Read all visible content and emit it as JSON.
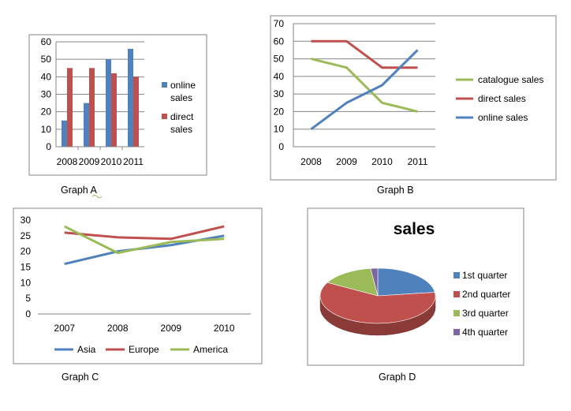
{
  "chart_data": [
    {
      "id": "graph-a",
      "type": "bar",
      "caption": "Graph A",
      "categories": [
        "2008",
        "2009",
        "2010",
        "2011"
      ],
      "series": [
        {
          "name": "online sales",
          "color": "#4F81BD",
          "values": [
            15,
            25,
            50,
            56
          ]
        },
        {
          "name": "direct sales",
          "color": "#C0504D",
          "values": [
            45,
            45,
            42,
            40
          ]
        }
      ],
      "ylim": [
        0,
        60
      ],
      "yticks": [
        "0",
        "10",
        "20",
        "30",
        "40",
        "50",
        "60"
      ],
      "grid": true,
      "legend": "right"
    },
    {
      "id": "graph-b",
      "type": "line",
      "caption": "Graph B",
      "categories": [
        "2008",
        "2009",
        "2010",
        "2011"
      ],
      "series": [
        {
          "name": "catalogue sales",
          "color": "#9BBB59",
          "values": [
            50,
            45,
            25,
            20
          ]
        },
        {
          "name": "direct sales",
          "color": "#C0504D",
          "values": [
            60,
            60,
            45,
            45
          ]
        },
        {
          "name": "online sales",
          "color": "#4F81BD",
          "values": [
            10,
            25,
            35,
            55
          ]
        }
      ],
      "ylim": [
        0,
        70
      ],
      "yticks": [
        "0",
        "10",
        "20",
        "30",
        "40",
        "50",
        "60",
        "70"
      ],
      "grid": true,
      "legend": "right"
    },
    {
      "id": "graph-c",
      "type": "line",
      "caption": "Graph C",
      "categories": [
        "2007",
        "2008",
        "2009",
        "2010"
      ],
      "series": [
        {
          "name": "Asia",
          "color": "#4F81BD",
          "values": [
            16,
            20,
            22,
            25
          ]
        },
        {
          "name": "Europe",
          "color": "#C0504D",
          "values": [
            26,
            24.5,
            24,
            28
          ]
        },
        {
          "name": "America",
          "color": "#9BBB59",
          "values": [
            28,
            19.5,
            23,
            24
          ]
        }
      ],
      "ylim": [
        0,
        30
      ],
      "yticks": [
        "0",
        "5",
        "10",
        "15",
        "20",
        "25",
        "30"
      ],
      "grid": false,
      "legend": "bottom"
    },
    {
      "id": "graph-d",
      "type": "pie",
      "caption": "Graph D",
      "title": "sales",
      "categories": [
        "1st quarter",
        "2nd quarter",
        "3rd quarter",
        "4th quarter"
      ],
      "values": [
        23,
        60,
        15,
        2
      ],
      "colors": [
        "#4F81BD",
        "#C0504D",
        "#9BBB59",
        "#8064A2"
      ],
      "legend": "right"
    }
  ]
}
